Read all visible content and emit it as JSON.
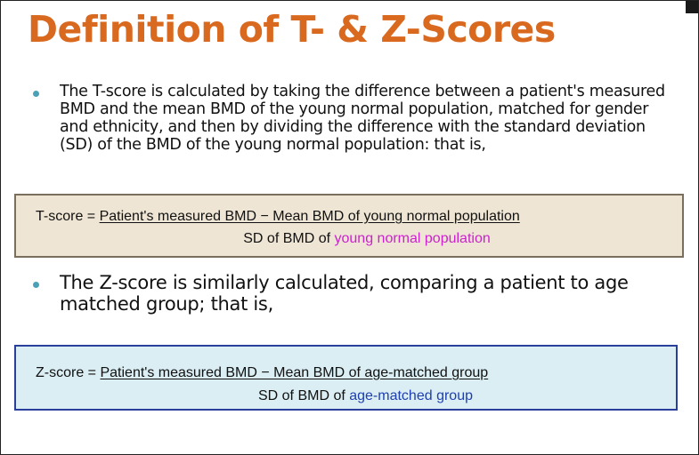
{
  "slide": {
    "title": "Definition of  T- & Z-Scores",
    "bullet1": "The T-score is calculated by taking the difference between a patient's measured BMD and the mean BMD of the young normal population, matched for gender and ethnicity, and then by dividing the difference with the standard deviation (SD) of the BMD of the young normal population: that is,",
    "t_formula": {
      "lhs": "T-score = ",
      "numerator": "Patient's measured BMD − Mean BMD of young normal population",
      "denominator_prefix": "SD of BMD of ",
      "denominator_highlight": "young normal population"
    },
    "bullet2": "The Z-score is similarly calculated, comparing a patient to age matched group; that is,",
    "z_formula": {
      "lhs": "Z-score = ",
      "numerator": "Patient's measured BMD − Mean BMD of age-matched group",
      "denominator_prefix": "SD of BMD of ",
      "denominator_highlight": "age-matched group"
    }
  },
  "colors": {
    "title": "#d9691f",
    "bullet": "#4aa1b5",
    "t_box_fill": "#eee5d4",
    "t_box_border": "#7a6f5c",
    "z_box_fill": "#daeef3",
    "z_box_border": "#2a3e9c",
    "t_highlight": "#cc22cc",
    "z_highlight": "#1f3fae"
  },
  "icons": {
    "bullet": "bullet-dot"
  }
}
